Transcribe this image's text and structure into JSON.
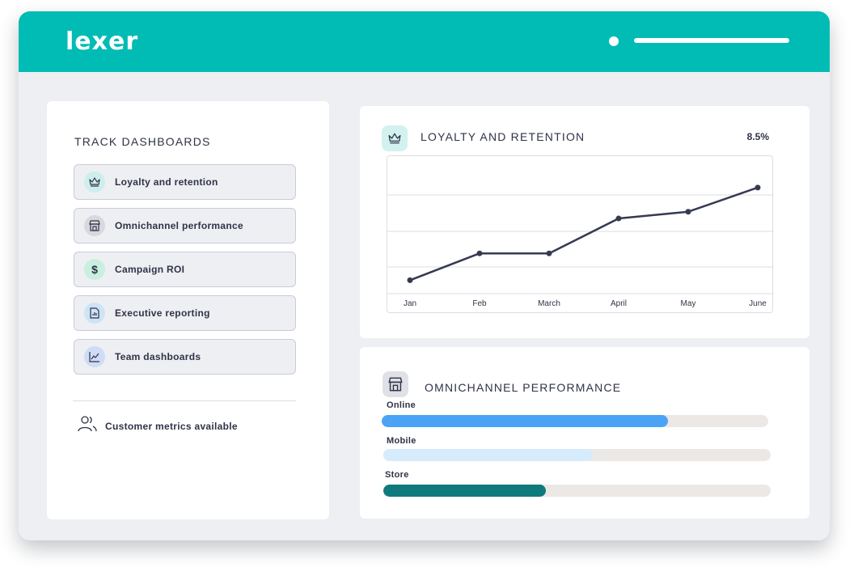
{
  "header": {
    "logo": "lexer"
  },
  "sidebar": {
    "title": "TRACK DASHBOARDS",
    "items": [
      {
        "label": "Loyalty and retention",
        "icon": "crown-icon",
        "icon_bg": "#cdeeed"
      },
      {
        "label": "Omnichannel performance",
        "icon": "store-icon",
        "icon_bg": "#d7d9de"
      },
      {
        "label": "Campaign ROI",
        "icon": "dollar-icon",
        "icon_bg": "#c8efe0"
      },
      {
        "label": "Executive reporting",
        "icon": "report-icon",
        "icon_bg": "#cfe3f7"
      },
      {
        "label": "Team dashboards",
        "icon": "chart-line-icon",
        "icon_bg": "#cfdcf6"
      }
    ],
    "footer_label": "Customer metrics available"
  },
  "loyalty": {
    "title": "LOYALTY AND RETENTION",
    "stat": "8.5%"
  },
  "chart_data": {
    "type": "line",
    "categories": [
      "Jan",
      "Feb",
      "March",
      "April",
      "May",
      "June"
    ],
    "series": [
      {
        "values": [
          1.0,
          3.0,
          3.0,
          5.6,
          6.1,
          7.9
        ]
      }
    ],
    "ylim": [
      0,
      10
    ],
    "grid": true,
    "line_color": "#363a52"
  },
  "omnichannel": {
    "title": "OMNICHANNEL PERFORMANCE",
    "bars": [
      {
        "label": "Online",
        "fraction": 0.74,
        "color": "#4aa3f5"
      },
      {
        "label": "Mobile",
        "fraction": 0.54,
        "color": "#d6ebfb"
      },
      {
        "label": "Store",
        "fraction": 0.42,
        "color": "#0f7a7c"
      }
    ]
  }
}
